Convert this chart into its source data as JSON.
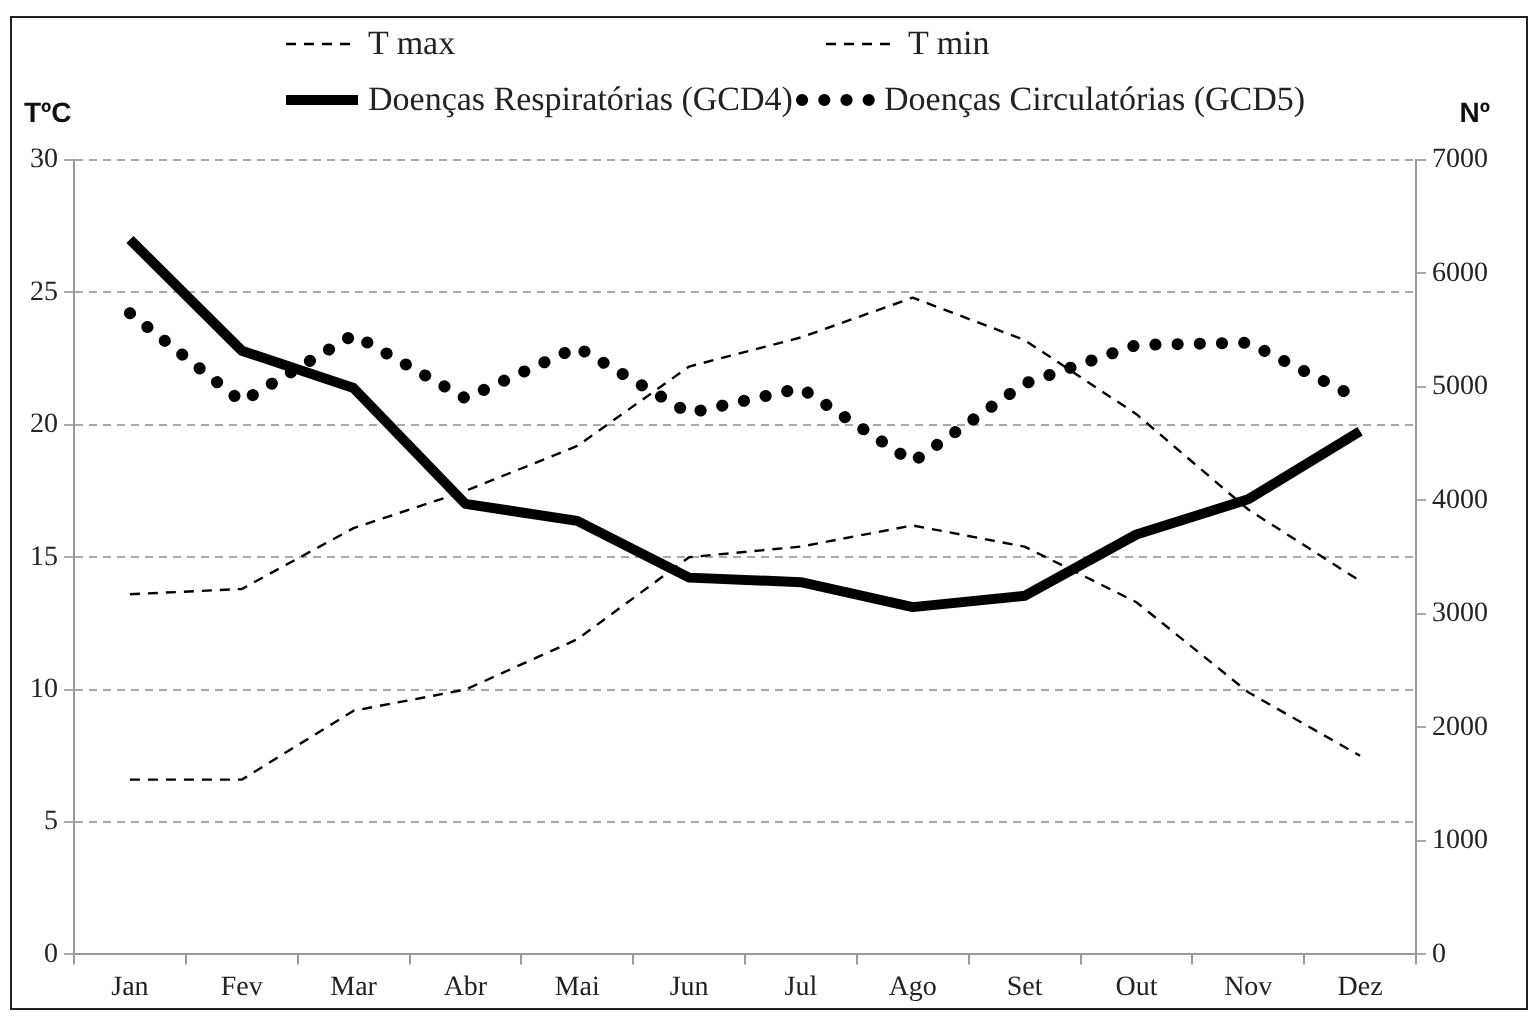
{
  "chart_data": {
    "type": "line",
    "ylabel": "TºC",
    "y2label": "Nº",
    "categories": [
      "Jan",
      "Fev",
      "Mar",
      "Abr",
      "Mai",
      "Jun",
      "Jul",
      "Ago",
      "Set",
      "Out",
      "Nov",
      "Dez"
    ],
    "series": [
      {
        "name": "T max",
        "color": "#000000",
        "line_style": "dashed",
        "values": [
          13.6,
          13.8,
          16.1,
          17.5,
          19.2,
          22.2,
          23.3,
          24.8,
          23.2,
          20.4,
          16.8,
          14.1
        ]
      },
      {
        "name": "T min",
        "color": "#000000",
        "line_style": "dashed",
        "values": [
          6.6,
          6.6,
          9.2,
          10.0,
          11.9,
          15.0,
          15.4,
          16.2,
          15.4,
          13.3,
          9.9,
          7.5
        ]
      },
      {
        "name": "Doenças Respiratórias (GCD4)",
        "color": "#000000",
        "line_style": "solid",
        "axis": "y2",
        "values": [
          6300,
          5320,
          4990,
          3970,
          3820,
          3320,
          3280,
          3060,
          3160,
          3700,
          4010,
          4610
        ]
      },
      {
        "name": "Doenças Circulatórias (GCD5)",
        "color": "#000000",
        "line_style": "dotted",
        "axis": "y2",
        "values": [
          5650,
          4870,
          5460,
          4900,
          5350,
          4770,
          4990,
          4340,
          5030,
          5370,
          5390,
          4890
        ]
      }
    ],
    "ylim": [
      0,
      30
    ],
    "yticks": [
      0,
      5,
      10,
      15,
      20,
      25,
      30
    ],
    "y2lim": [
      0,
      7000
    ],
    "y2ticks": [
      0,
      1000,
      2000,
      3000,
      4000,
      5000,
      6000,
      7000
    ],
    "grid": "y",
    "legend": "top",
    "marker": "none"
  }
}
